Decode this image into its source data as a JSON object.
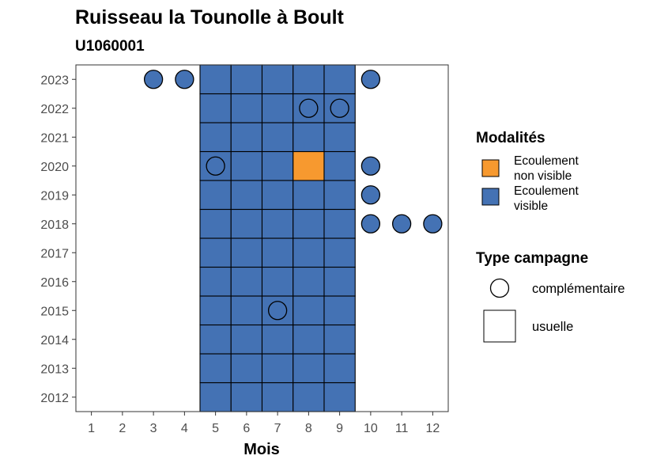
{
  "title": "Ruisseau la Tounolle à Boult",
  "subtitle": "U1060001",
  "chart_data": {
    "type": "heatmap",
    "xlabel": "Mois",
    "ylabel": "",
    "x_ticks": [
      "1",
      "2",
      "3",
      "4",
      "5",
      "6",
      "7",
      "8",
      "9",
      "10",
      "11",
      "12"
    ],
    "y_ticks": [
      "2012",
      "2013",
      "2014",
      "2015",
      "2016",
      "2017",
      "2018",
      "2019",
      "2020",
      "2021",
      "2022",
      "2023"
    ],
    "xlim": [
      0.5,
      12.5
    ],
    "ylim": [
      2011.5,
      2023.5
    ],
    "grid": false,
    "legend_placement": "right",
    "colors": {
      "Ecoulement non visible": "#f7992f",
      "Ecoulement visible": "#4472b4"
    },
    "legend": {
      "modalites_title": "Modalités",
      "modalites": [
        {
          "key": "Ecoulement non visible",
          "lines": [
            "Ecoulement",
            "non visible"
          ]
        },
        {
          "key": "Ecoulement visible",
          "lines": [
            "Ecoulement",
            "visible"
          ]
        }
      ],
      "campagne_title": "Type campagne",
      "campagnes": [
        {
          "shape": "circle",
          "label": "complémentaire"
        },
        {
          "shape": "square",
          "label": "usuelle"
        }
      ]
    },
    "observations": [
      {
        "year": 2012,
        "month": 5,
        "modalite": "Ecoulement visible",
        "campagne": "usuelle"
      },
      {
        "year": 2012,
        "month": 6,
        "modalite": "Ecoulement visible",
        "campagne": "usuelle"
      },
      {
        "year": 2012,
        "month": 7,
        "modalite": "Ecoulement visible",
        "campagne": "usuelle"
      },
      {
        "year": 2012,
        "month": 8,
        "modalite": "Ecoulement visible",
        "campagne": "usuelle"
      },
      {
        "year": 2012,
        "month": 9,
        "modalite": "Ecoulement visible",
        "campagne": "usuelle"
      },
      {
        "year": 2013,
        "month": 5,
        "modalite": "Ecoulement visible",
        "campagne": "usuelle"
      },
      {
        "year": 2013,
        "month": 6,
        "modalite": "Ecoulement visible",
        "campagne": "usuelle"
      },
      {
        "year": 2013,
        "month": 7,
        "modalite": "Ecoulement visible",
        "campagne": "usuelle"
      },
      {
        "year": 2013,
        "month": 8,
        "modalite": "Ecoulement visible",
        "campagne": "usuelle"
      },
      {
        "year": 2013,
        "month": 9,
        "modalite": "Ecoulement visible",
        "campagne": "usuelle"
      },
      {
        "year": 2014,
        "month": 5,
        "modalite": "Ecoulement visible",
        "campagne": "usuelle"
      },
      {
        "year": 2014,
        "month": 6,
        "modalite": "Ecoulement visible",
        "campagne": "usuelle"
      },
      {
        "year": 2014,
        "month": 7,
        "modalite": "Ecoulement visible",
        "campagne": "usuelle"
      },
      {
        "year": 2014,
        "month": 8,
        "modalite": "Ecoulement visible",
        "campagne": "usuelle"
      },
      {
        "year": 2014,
        "month": 9,
        "modalite": "Ecoulement visible",
        "campagne": "usuelle"
      },
      {
        "year": 2015,
        "month": 5,
        "modalite": "Ecoulement visible",
        "campagne": "usuelle"
      },
      {
        "year": 2015,
        "month": 6,
        "modalite": "Ecoulement visible",
        "campagne": "usuelle"
      },
      {
        "year": 2015,
        "month": 7,
        "modalite": "Ecoulement visible",
        "campagne": "usuelle"
      },
      {
        "year": 2015,
        "month": 7,
        "modalite": "Ecoulement visible",
        "campagne": "complémentaire"
      },
      {
        "year": 2015,
        "month": 8,
        "modalite": "Ecoulement visible",
        "campagne": "usuelle"
      },
      {
        "year": 2015,
        "month": 9,
        "modalite": "Ecoulement visible",
        "campagne": "usuelle"
      },
      {
        "year": 2016,
        "month": 5,
        "modalite": "Ecoulement visible",
        "campagne": "usuelle"
      },
      {
        "year": 2016,
        "month": 6,
        "modalite": "Ecoulement visible",
        "campagne": "usuelle"
      },
      {
        "year": 2016,
        "month": 7,
        "modalite": "Ecoulement visible",
        "campagne": "usuelle"
      },
      {
        "year": 2016,
        "month": 8,
        "modalite": "Ecoulement visible",
        "campagne": "usuelle"
      },
      {
        "year": 2016,
        "month": 9,
        "modalite": "Ecoulement visible",
        "campagne": "usuelle"
      },
      {
        "year": 2017,
        "month": 5,
        "modalite": "Ecoulement visible",
        "campagne": "usuelle"
      },
      {
        "year": 2017,
        "month": 6,
        "modalite": "Ecoulement visible",
        "campagne": "usuelle"
      },
      {
        "year": 2017,
        "month": 7,
        "modalite": "Ecoulement visible",
        "campagne": "usuelle"
      },
      {
        "year": 2017,
        "month": 8,
        "modalite": "Ecoulement visible",
        "campagne": "usuelle"
      },
      {
        "year": 2017,
        "month": 9,
        "modalite": "Ecoulement visible",
        "campagne": "usuelle"
      },
      {
        "year": 2018,
        "month": 5,
        "modalite": "Ecoulement visible",
        "campagne": "usuelle"
      },
      {
        "year": 2018,
        "month": 6,
        "modalite": "Ecoulement visible",
        "campagne": "usuelle"
      },
      {
        "year": 2018,
        "month": 7,
        "modalite": "Ecoulement visible",
        "campagne": "usuelle"
      },
      {
        "year": 2018,
        "month": 8,
        "modalite": "Ecoulement visible",
        "campagne": "usuelle"
      },
      {
        "year": 2018,
        "month": 9,
        "modalite": "Ecoulement visible",
        "campagne": "usuelle"
      },
      {
        "year": 2018,
        "month": 10,
        "modalite": "Ecoulement visible",
        "campagne": "complémentaire"
      },
      {
        "year": 2018,
        "month": 11,
        "modalite": "Ecoulement visible",
        "campagne": "complémentaire"
      },
      {
        "year": 2018,
        "month": 12,
        "modalite": "Ecoulement visible",
        "campagne": "complémentaire"
      },
      {
        "year": 2019,
        "month": 5,
        "modalite": "Ecoulement visible",
        "campagne": "usuelle"
      },
      {
        "year": 2019,
        "month": 6,
        "modalite": "Ecoulement visible",
        "campagne": "usuelle"
      },
      {
        "year": 2019,
        "month": 7,
        "modalite": "Ecoulement visible",
        "campagne": "usuelle"
      },
      {
        "year": 2019,
        "month": 8,
        "modalite": "Ecoulement visible",
        "campagne": "usuelle"
      },
      {
        "year": 2019,
        "month": 9,
        "modalite": "Ecoulement visible",
        "campagne": "usuelle"
      },
      {
        "year": 2019,
        "month": 10,
        "modalite": "Ecoulement visible",
        "campagne": "complémentaire"
      },
      {
        "year": 2020,
        "month": 5,
        "modalite": "Ecoulement visible",
        "campagne": "usuelle"
      },
      {
        "year": 2020,
        "month": 5,
        "modalite": "Ecoulement visible",
        "campagne": "complémentaire"
      },
      {
        "year": 2020,
        "month": 6,
        "modalite": "Ecoulement visible",
        "campagne": "usuelle"
      },
      {
        "year": 2020,
        "month": 7,
        "modalite": "Ecoulement visible",
        "campagne": "usuelle"
      },
      {
        "year": 2020,
        "month": 8,
        "modalite": "Ecoulement non visible",
        "campagne": "usuelle"
      },
      {
        "year": 2020,
        "month": 9,
        "modalite": "Ecoulement visible",
        "campagne": "usuelle"
      },
      {
        "year": 2020,
        "month": 10,
        "modalite": "Ecoulement visible",
        "campagne": "complémentaire"
      },
      {
        "year": 2021,
        "month": 5,
        "modalite": "Ecoulement visible",
        "campagne": "usuelle"
      },
      {
        "year": 2021,
        "month": 6,
        "modalite": "Ecoulement visible",
        "campagne": "usuelle"
      },
      {
        "year": 2021,
        "month": 7,
        "modalite": "Ecoulement visible",
        "campagne": "usuelle"
      },
      {
        "year": 2021,
        "month": 8,
        "modalite": "Ecoulement visible",
        "campagne": "usuelle"
      },
      {
        "year": 2021,
        "month": 9,
        "modalite": "Ecoulement visible",
        "campagne": "usuelle"
      },
      {
        "year": 2022,
        "month": 5,
        "modalite": "Ecoulement visible",
        "campagne": "usuelle"
      },
      {
        "year": 2022,
        "month": 6,
        "modalite": "Ecoulement visible",
        "campagne": "usuelle"
      },
      {
        "year": 2022,
        "month": 7,
        "modalite": "Ecoulement visible",
        "campagne": "usuelle"
      },
      {
        "year": 2022,
        "month": 8,
        "modalite": "Ecoulement visible",
        "campagne": "usuelle"
      },
      {
        "year": 2022,
        "month": 8,
        "modalite": "Ecoulement visible",
        "campagne": "complémentaire"
      },
      {
        "year": 2022,
        "month": 9,
        "modalite": "Ecoulement visible",
        "campagne": "usuelle"
      },
      {
        "year": 2022,
        "month": 9,
        "modalite": "Ecoulement visible",
        "campagne": "complémentaire"
      },
      {
        "year": 2023,
        "month": 3,
        "modalite": "Ecoulement visible",
        "campagne": "complémentaire"
      },
      {
        "year": 2023,
        "month": 4,
        "modalite": "Ecoulement visible",
        "campagne": "complémentaire"
      },
      {
        "year": 2023,
        "month": 5,
        "modalite": "Ecoulement visible",
        "campagne": "usuelle"
      },
      {
        "year": 2023,
        "month": 6,
        "modalite": "Ecoulement visible",
        "campagne": "usuelle"
      },
      {
        "year": 2023,
        "month": 7,
        "modalite": "Ecoulement visible",
        "campagne": "usuelle"
      },
      {
        "year": 2023,
        "month": 8,
        "modalite": "Ecoulement visible",
        "campagne": "usuelle"
      },
      {
        "year": 2023,
        "month": 9,
        "modalite": "Ecoulement visible",
        "campagne": "usuelle"
      },
      {
        "year": 2023,
        "month": 10,
        "modalite": "Ecoulement visible",
        "campagne": "complémentaire"
      }
    ]
  }
}
